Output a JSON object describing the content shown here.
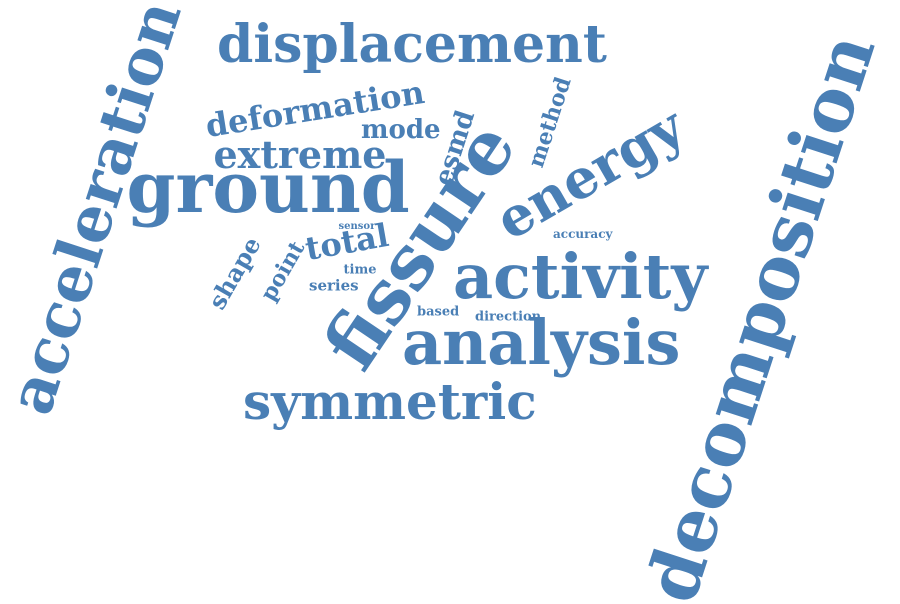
{
  "word_cloud": {
    "color": "#4a7fb5",
    "words": [
      {
        "text": "decomposition"
      },
      {
        "text": "acceleration"
      },
      {
        "text": "ground"
      },
      {
        "text": "fissure"
      },
      {
        "text": "activity"
      },
      {
        "text": "analysis"
      },
      {
        "text": "displacement"
      },
      {
        "text": "symmetric"
      },
      {
        "text": "energy"
      },
      {
        "text": "extreme"
      },
      {
        "text": "deformation"
      },
      {
        "text": "mode"
      },
      {
        "text": "esmd"
      },
      {
        "text": "method"
      },
      {
        "text": "total"
      },
      {
        "text": "point"
      },
      {
        "text": "shape"
      },
      {
        "text": "series"
      },
      {
        "text": "time"
      },
      {
        "text": "sensor"
      },
      {
        "text": "accuracy"
      },
      {
        "text": "based"
      },
      {
        "text": "direction"
      }
    ]
  }
}
